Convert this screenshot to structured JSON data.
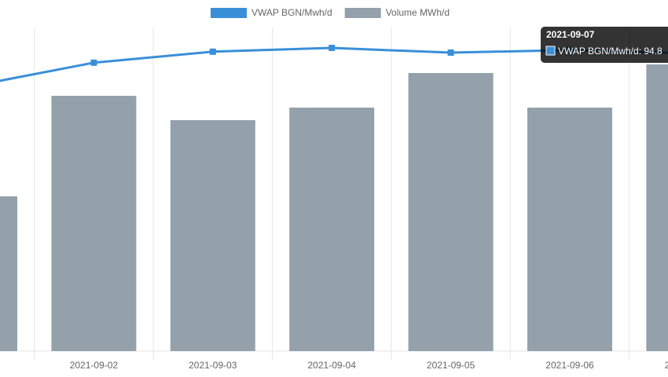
{
  "chart_data": {
    "type": "bar",
    "categories": [
      null,
      "2021-09-02",
      "2021-09-03",
      "2021-09-04",
      "2021-09-05",
      "2021-09-06",
      "2021-09-07"
    ],
    "series": [
      {
        "name": "VWAP BGN/Mwh/d",
        "type": "line",
        "axis": "y2",
        "color": "#3a8fd9",
        "values": [
          84.5,
          91.8,
          95.3,
          96.5,
          95.0,
          95.8,
          94.8
        ]
      },
      {
        "name": "Volume MWh/d",
        "type": "bar",
        "color": "#94a1ab",
        "values": [
          197,
          325,
          294,
          310,
          354,
          310,
          365
        ]
      }
    ],
    "ylim": [
      0,
      400
    ],
    "y2lim": [
      0,
      100
    ],
    "grid": true,
    "legend": "top",
    "tooltip": {
      "label": "VWAP BGN/Mwh/d: 94.8"
    }
  }
}
